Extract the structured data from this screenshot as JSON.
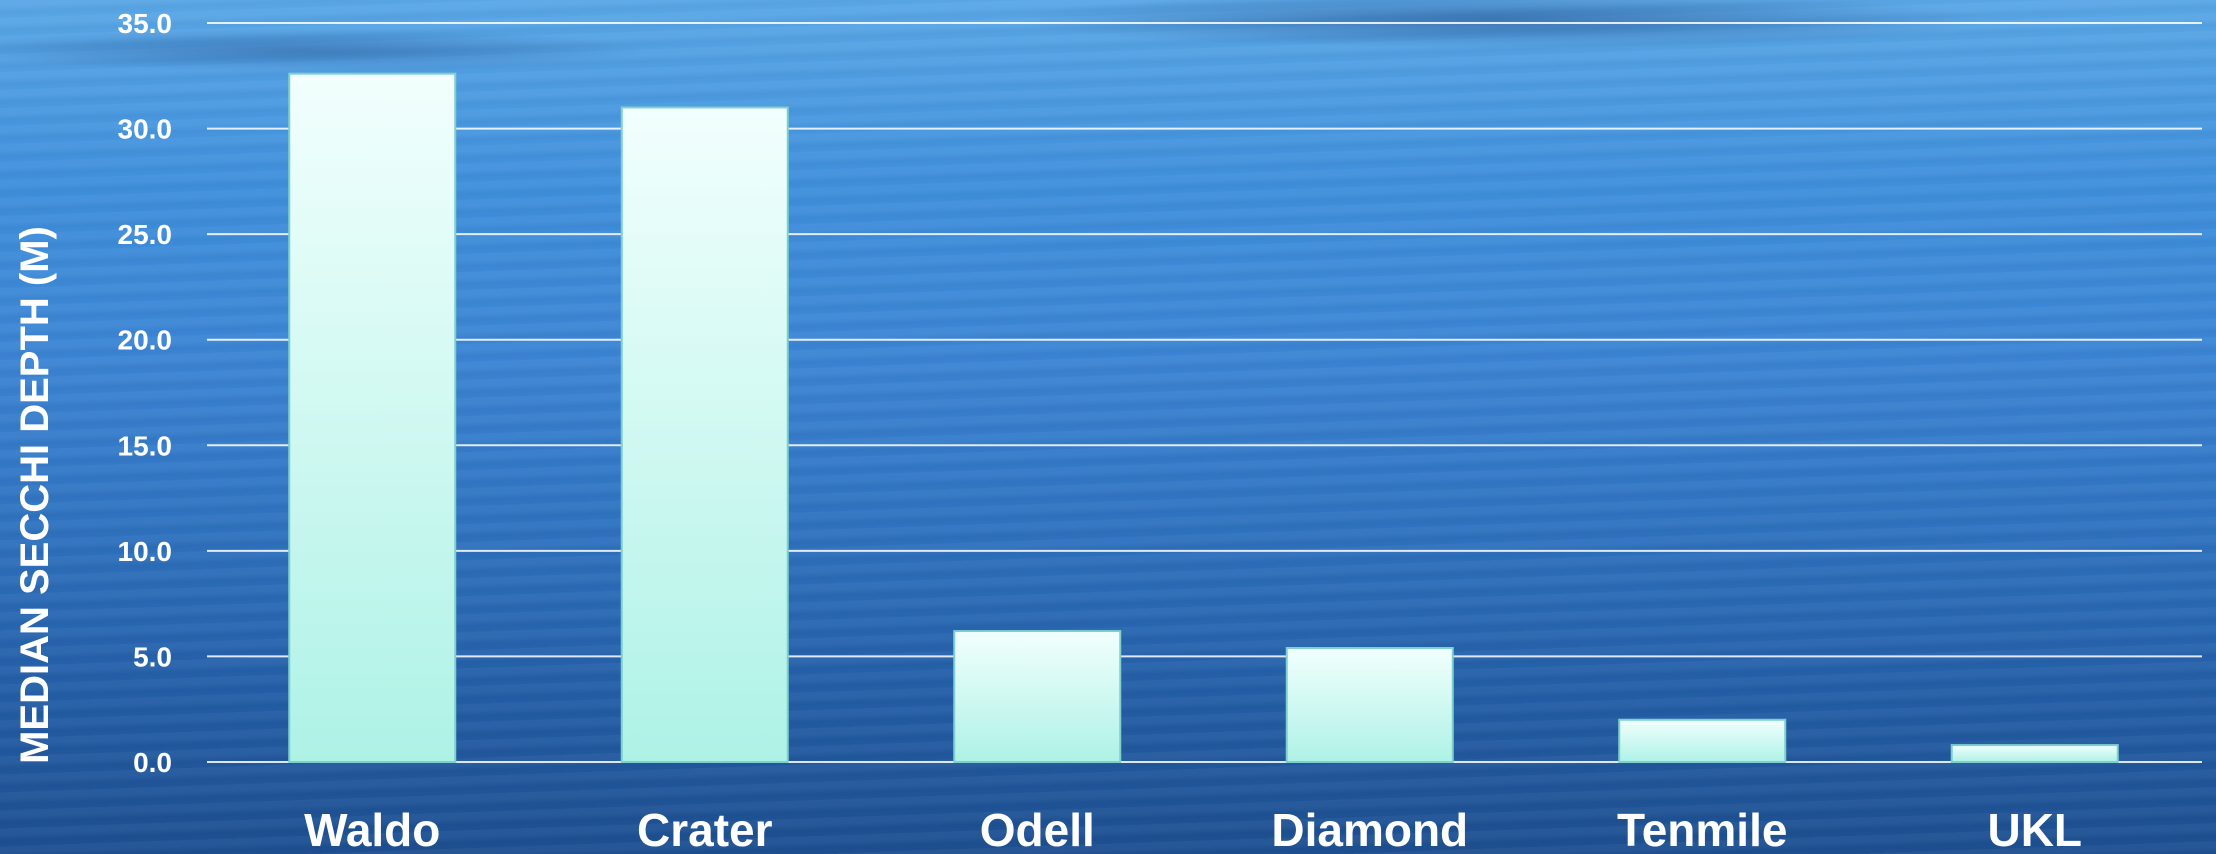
{
  "chart_data": {
    "type": "bar",
    "categories": [
      "Waldo",
      "Crater",
      "Odell",
      "Diamond",
      "Tenmile",
      "UKL"
    ],
    "values": [
      32.6,
      31.0,
      6.2,
      5.4,
      2.0,
      0.8
    ],
    "title": "",
    "xlabel": "",
    "ylabel": "MEDIAN SECCHI DEPTH (M)",
    "ylim": [
      0,
      35
    ],
    "yticks": [
      "0.0",
      "5.0",
      "10.0",
      "15.0",
      "20.0",
      "25.0",
      "30.0",
      "35.0"
    ],
    "grid": true,
    "legend": "none",
    "colors": {
      "bar_top": "#f2fffd",
      "bar_bottom": "#aef2e6",
      "bar_edge": "#7fcfcf",
      "gridline": "#ffffff",
      "text": "#ffffff"
    }
  }
}
